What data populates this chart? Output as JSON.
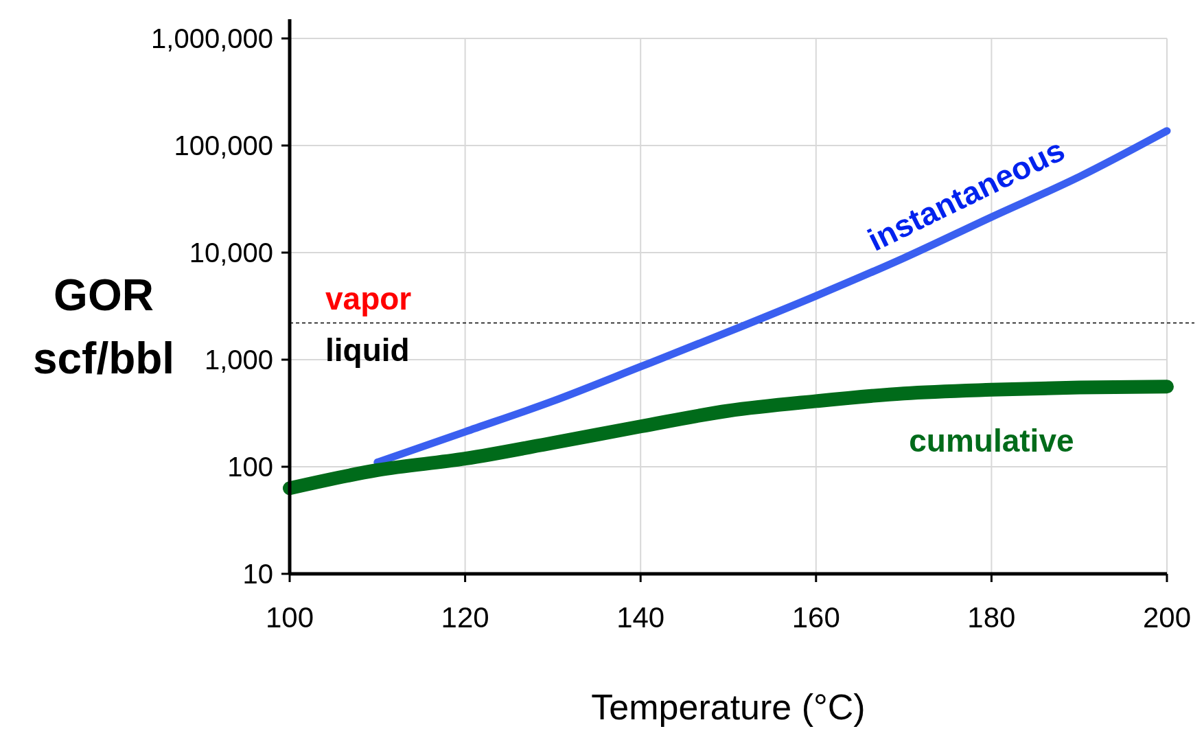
{
  "chart_data": {
    "type": "line",
    "xlabel": "Temperature (°C)",
    "ylabel": "GOR\nscf/bbl",
    "log": "y",
    "x": [
      100,
      110,
      120,
      130,
      140,
      150,
      160,
      170,
      180,
      190,
      200
    ],
    "series": [
      {
        "name": "instantaneous",
        "color": "#3a5ff0",
        "values": [
          null,
          110,
          212,
          410,
          860,
          1820,
          3940,
          8900,
          21500,
          51000,
          137000
        ]
      },
      {
        "name": "cumulative",
        "color": "#006b1a",
        "values": [
          63,
          93,
          119,
          167,
          238,
          333,
          410,
          484,
          524,
          550,
          560
        ]
      }
    ],
    "xlim": [
      100,
      200
    ],
    "xticks": [
      100,
      120,
      140,
      160,
      180,
      200
    ],
    "ylim": [
      10,
      1000000
    ],
    "yticks": [
      10,
      100,
      {
        "value": 1000,
        "label": "1,000"
      },
      {
        "value": 10000,
        "label": "10,000"
      },
      {
        "value": 100000,
        "label": "100,000"
      },
      {
        "value": 1000000,
        "label": "1,000,000"
      }
    ],
    "grid": true,
    "ref_lines": [
      {
        "axis": "y",
        "value": 2200,
        "color": "#000000",
        "line_style": "dashed"
      }
    ],
    "annotations": [
      "vapor",
      "liquid"
    ]
  }
}
